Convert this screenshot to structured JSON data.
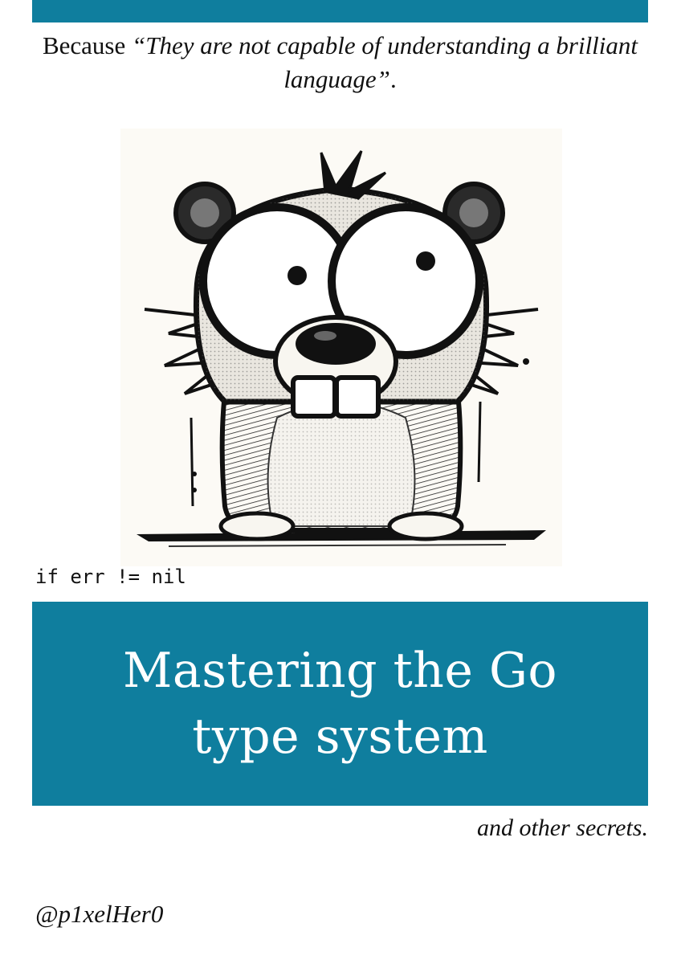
{
  "colors": {
    "accent": "#0f7e9e",
    "ink": "#111111"
  },
  "header": {
    "tagline_prefix": "Because ",
    "tagline_quote": "“They are not capable of understanding a brilliant language”",
    "tagline_suffix": "."
  },
  "illustration": {
    "icon": "gopher-illustration"
  },
  "code": {
    "line": "if err != nil"
  },
  "cover": {
    "title": "Mastering the Go type system",
    "subtitle": "and other secrets."
  },
  "author": {
    "handle": "@p1xelHer0"
  }
}
